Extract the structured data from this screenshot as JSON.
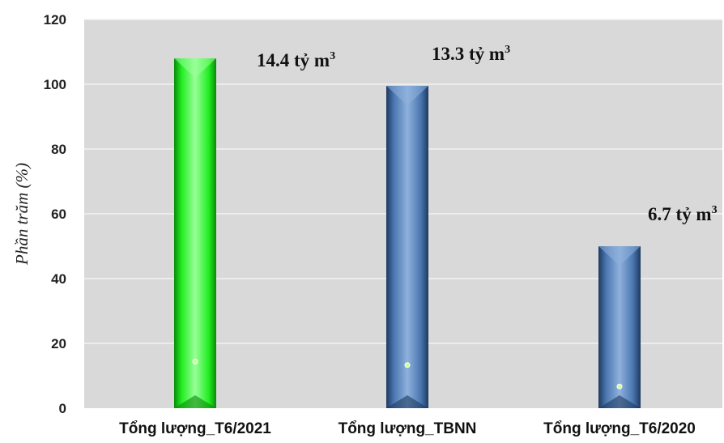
{
  "chart_data": {
    "type": "bar",
    "categories": [
      "Tổng lượng_T6/2021",
      "Tổng lượng_TBNN",
      "Tổng lượng_T6/2020"
    ],
    "values": [
      108,
      99.5,
      50
    ],
    "marker_values": [
      14.4,
      13.3,
      6.7
    ],
    "data_labels": [
      {
        "text": "14.4 tỷ m",
        "sup": "3"
      },
      {
        "text": "13.3 tỷ m",
        "sup": "3"
      },
      {
        "text": "6.7 tỷ m",
        "sup": "3"
      }
    ],
    "ylabel": "Phần trăm (%)",
    "ylim": [
      0,
      120
    ],
    "yticks": [
      0,
      20,
      40,
      60,
      80,
      100,
      120
    ],
    "grid": true,
    "colors": {
      "plot_background": "#d9d9d9",
      "gridline": "#f2f2f2",
      "bars": [
        "#22ee22",
        "#4a76b0",
        "#4a76b0"
      ],
      "bars_light": [
        "#99ff99",
        "#8fb1dc",
        "#8fb1dc"
      ],
      "bars_dark": [
        "#0a8a0a",
        "#1d3a60",
        "#1d3a60"
      ],
      "marker": "#ccff99"
    }
  }
}
